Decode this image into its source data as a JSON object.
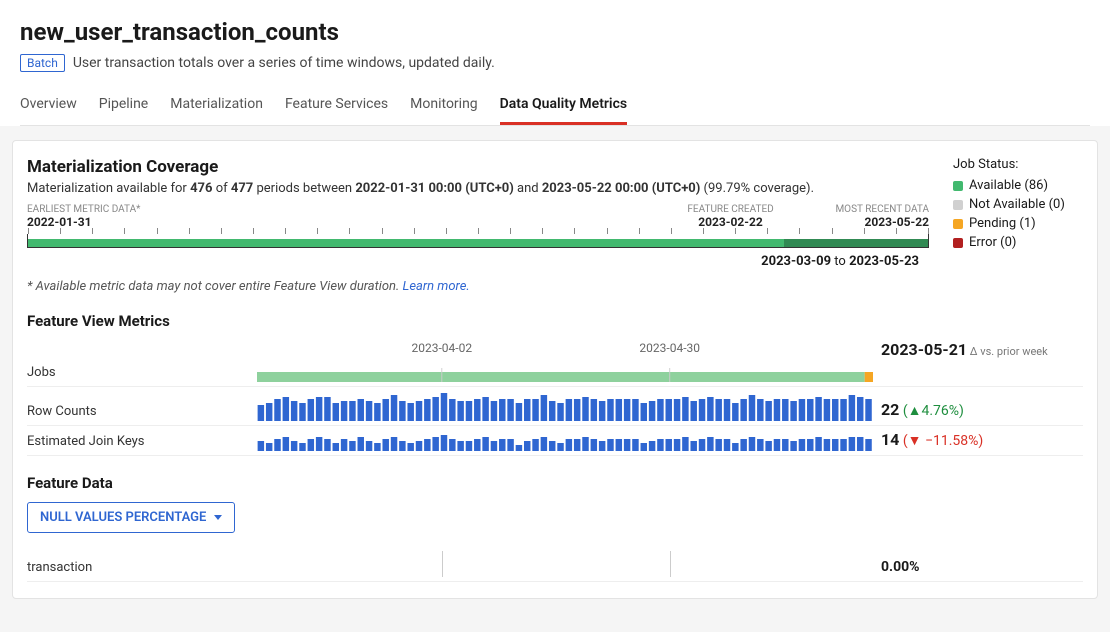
{
  "header": {
    "title": "new_user_transaction_counts",
    "badge": "Batch",
    "subtitle": "User transaction totals over a series of time windows, updated daily."
  },
  "tabs": {
    "items": [
      {
        "label": "Overview"
      },
      {
        "label": "Pipeline"
      },
      {
        "label": "Materialization"
      },
      {
        "label": "Feature Services"
      },
      {
        "label": "Monitoring"
      },
      {
        "label": "Data Quality Metrics"
      }
    ],
    "active_index": 5
  },
  "coverage": {
    "title": "Materialization Coverage",
    "desc_prefix": "Materialization available for ",
    "desc_count": "476",
    "desc_of": " of ",
    "desc_total": "477",
    "desc_mid": " periods between ",
    "start_ts": "2022-01-31 00:00 (UTC+0)",
    "desc_and": " and ",
    "end_ts": "2023-05-22 00:00 (UTC+0)",
    "desc_pct": " (99.79% coverage).",
    "labels": {
      "earliest_label": "EARLIEST METRIC DATA*",
      "earliest_date": "2022-01-31",
      "feature_created_label": "FEATURE CREATED",
      "feature_created_date": "2023-02-22",
      "most_recent_label": "MOST RECENT DATA",
      "most_recent_date": "2023-05-22"
    },
    "range_text_from": "2023-03-09",
    "range_text_to": " to ",
    "range_text_end": "2023-05-23",
    "footnote_text": "* Available metric data may not cover entire Feature View duration. ",
    "footnote_link": "Learn more.",
    "dark_start_pct": 84,
    "dark_width_pct": 16,
    "ticks": 28,
    "colors": {
      "available": "#42b96f",
      "not_available": "#d0d0d0",
      "pending": "#f5a623",
      "error": "#b22020"
    },
    "legend": {
      "title": "Job Status:",
      "items": [
        {
          "label": "Available (86)",
          "color": "#42b96f"
        },
        {
          "label": "Not Available (0)",
          "color": "#d0d0d0"
        },
        {
          "label": "Pending (1)",
          "color": "#f5a623"
        },
        {
          "label": "Error (0)",
          "color": "#b22020"
        }
      ]
    }
  },
  "metrics": {
    "title": "Feature View Metrics",
    "axis": [
      {
        "label": "2023-04-02",
        "pos_pct": 30
      },
      {
        "label": "2023-04-30",
        "pos_pct": 67
      }
    ],
    "header_value": "2023-05-21",
    "header_delta_note": " Δ vs. prior week",
    "jobs": {
      "label": "Jobs",
      "bar_color": "#8ed19d",
      "pending_color": "#f5a623",
      "n_bars": 74
    },
    "row_counts": {
      "label": "Row Counts",
      "value": "22",
      "delta": "(▲4.76%)",
      "bar_color": "#2f66d1",
      "values": [
        16,
        18,
        22,
        24,
        20,
        18,
        22,
        24,
        24,
        18,
        20,
        20,
        22,
        20,
        18,
        22,
        26,
        20,
        18,
        20,
        22,
        24,
        28,
        22,
        20,
        20,
        22,
        24,
        20,
        22,
        22,
        18,
        22,
        22,
        26,
        20,
        18,
        22,
        22,
        24,
        22,
        20,
        22,
        22,
        22,
        22,
        18,
        20,
        22,
        22,
        22,
        24,
        20,
        22,
        24,
        22,
        22,
        18,
        22,
        26,
        22,
        20,
        22,
        22,
        20,
        22,
        22,
        24,
        22,
        22,
        22,
        26,
        24,
        22
      ]
    },
    "join_keys": {
      "label": "Estimated Join Keys",
      "value": "14",
      "delta": "(▼ −11.58%)",
      "bar_color": "#2f66d1",
      "values": [
        10,
        8,
        12,
        14,
        10,
        8,
        12,
        14,
        12,
        8,
        12,
        10,
        14,
        10,
        8,
        12,
        14,
        10,
        8,
        10,
        12,
        14,
        16,
        12,
        10,
        10,
        12,
        14,
        10,
        12,
        12,
        6,
        10,
        12,
        14,
        10,
        8,
        12,
        12,
        14,
        12,
        10,
        12,
        12,
        12,
        12,
        8,
        10,
        12,
        12,
        12,
        14,
        10,
        12,
        14,
        12,
        12,
        8,
        12,
        14,
        12,
        10,
        12,
        12,
        10,
        12,
        12,
        14,
        12,
        12,
        12,
        14,
        14,
        12
      ]
    }
  },
  "feature_data": {
    "title": "Feature Data",
    "dropdown_label": "NULL VALUES PERCENTAGE",
    "row": {
      "label": "transaction",
      "value": "0.00%",
      "vlines_pct": [
        30,
        67
      ]
    }
  },
  "colors": {
    "accent_blue": "#2f66d1",
    "accent_red": "#d93025",
    "green": "#1e8e3e"
  }
}
